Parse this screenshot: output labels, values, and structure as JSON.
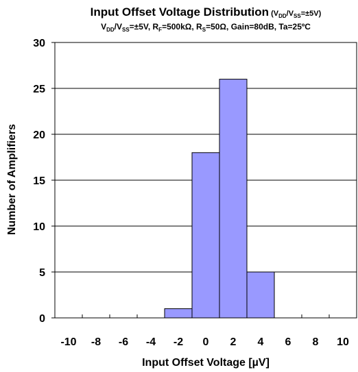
{
  "chart_data": {
    "type": "bar",
    "title": "Input Offset Voltage Distribution",
    "title_suffix": {
      "open": " (V",
      "sub1": "DD",
      "mid": "/V",
      "sub2": "SS",
      "close": "=±5V)"
    },
    "subtitle": {
      "p1": "V",
      "s1": "DD",
      "p2": "/V",
      "s2": "SS",
      "p3": "=±5V, R",
      "s3": "F",
      "p4": "=500kΩ, R",
      "s4": "S",
      "p5": "=50Ω, Gain=80dB, Ta=25ºC"
    },
    "xlabel": "Input Offset Voltage [µV]",
    "ylabel": "Number of Amplifiers",
    "xlim": [
      -11,
      11
    ],
    "ylim": [
      0,
      30
    ],
    "x_ticks": [
      "-10",
      "-8",
      "-6",
      "-4",
      "-2",
      "0",
      "2",
      "4",
      "6",
      "8",
      "10"
    ],
    "y_ticks": [
      "0",
      "5",
      "10",
      "15",
      "20",
      "25",
      "30"
    ],
    "bin_width": 2,
    "bin_centers": [
      -10,
      -8,
      -6,
      -4,
      -2,
      0,
      2,
      4,
      6,
      8,
      10
    ],
    "values": [
      0,
      0,
      0,
      0,
      1,
      18,
      26,
      5,
      0,
      0,
      0
    ],
    "grid": "horizontal",
    "colors": {
      "bar": "#9999ff",
      "bar_edge": "#000000",
      "grid": "#000000"
    }
  }
}
